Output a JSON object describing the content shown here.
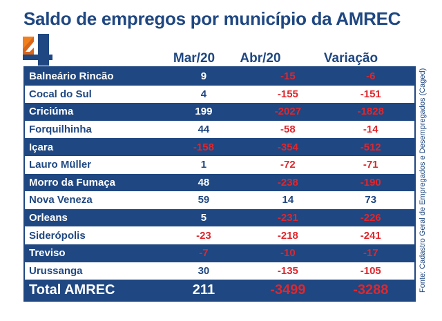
{
  "title": "Saldo de empregos por município da AMREC",
  "logo_text": "4",
  "source": "Fonte: Cadastro Geral de Empregados e Desempregados (Caged)",
  "colors": {
    "primary": "#1f4781",
    "negative": "#e0262c",
    "logo_orange": "#f07f1e"
  },
  "chart_data": {
    "type": "table",
    "columns": [
      "Mar/20",
      "Abr/20",
      "Variação"
    ],
    "rows": [
      {
        "municipio": "Balneário Rincão",
        "mar": "9",
        "abr": "-15",
        "var": "-6"
      },
      {
        "municipio": "Cocal do Sul",
        "mar": "4",
        "abr": "-155",
        "var": "-151"
      },
      {
        "municipio": "Criciúma",
        "mar": "199",
        "abr": "-2027",
        "var": "-1828"
      },
      {
        "municipio": "Forquilhinha",
        "mar": "44",
        "abr": "-58",
        "var": "-14"
      },
      {
        "municipio": "Içara",
        "mar": "-158",
        "abr": "-354",
        "var": "-512"
      },
      {
        "municipio": "Lauro Müller",
        "mar": "1",
        "abr": "-72",
        "var": "-71"
      },
      {
        "municipio": "Morro da Fumaça",
        "mar": "48",
        "abr": "-238",
        "var": "-190"
      },
      {
        "municipio": "Nova Veneza",
        "mar": "59",
        "abr": "14",
        "var": "73"
      },
      {
        "municipio": "Orleans",
        "mar": "5",
        "abr": "-231",
        "var": "-226"
      },
      {
        "municipio": "Siderópolis",
        "mar": "-23",
        "abr": "-218",
        "var": "-241"
      },
      {
        "municipio": "Treviso",
        "mar": "-7",
        "abr": "-10",
        "var": "-17"
      },
      {
        "municipio": "Urussanga",
        "mar": "30",
        "abr": "-135",
        "var": "-105"
      }
    ],
    "total": {
      "municipio": "Total AMREC",
      "mar": "211",
      "abr": "-3499",
      "var": "-3288"
    }
  }
}
